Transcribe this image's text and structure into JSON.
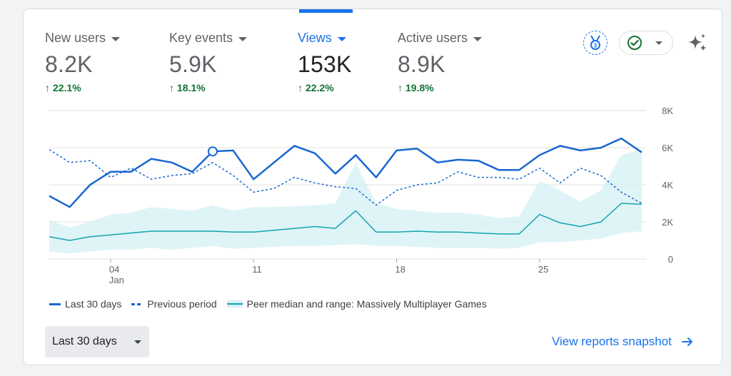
{
  "metrics": [
    {
      "label": "New users",
      "value": "8.2K",
      "change": "22.1%",
      "active": false
    },
    {
      "label": "Key events",
      "value": "5.9K",
      "change": "18.1%",
      "active": false
    },
    {
      "label": "Views",
      "value": "153K",
      "change": "22.2%",
      "active": true
    },
    {
      "label": "Active users",
      "value": "8.9K",
      "change": "19.8%",
      "active": false
    }
  ],
  "icons": {
    "badge": "ribbon-badge-icon",
    "status": "check-circle-icon",
    "insights": "sparkle-icon",
    "caret": "caret-down-icon",
    "arrow_up": "arrow-up-icon",
    "arrow_right": "arrow-right-icon"
  },
  "colors": {
    "accent": "#1a73e8",
    "positive": "#137333",
    "series_current": "#1967d2",
    "series_peer": "#12a4af",
    "peer_range": "#d4f0f4"
  },
  "chart_data": {
    "type": "line",
    "x_tick_labels": [
      {
        "index": 3,
        "label": "04",
        "sublabel": "Jan"
      },
      {
        "index": 10,
        "label": "11"
      },
      {
        "index": 17,
        "label": "18"
      },
      {
        "index": 24,
        "label": "25"
      }
    ],
    "y_ticks": [
      {
        "value": 0,
        "label": "0"
      },
      {
        "value": 2000,
        "label": "2K"
      },
      {
        "value": 4000,
        "label": "4K"
      },
      {
        "value": 6000,
        "label": "6K"
      },
      {
        "value": 8000,
        "label": "8K"
      }
    ],
    "ylim": [
      0,
      8000
    ],
    "grid": true,
    "legend_position": "bottom-left",
    "series": [
      {
        "name": "Last 30 days",
        "style": "solid",
        "values": [
          3400,
          2800,
          4000,
          4700,
          4700,
          5400,
          5200,
          4700,
          5800,
          5850,
          4300,
          5200,
          6100,
          5700,
          4600,
          5600,
          4400,
          5850,
          5950,
          5200,
          5350,
          5300,
          4800,
          4800,
          5600,
          6100,
          5850,
          6000,
          6500,
          5750
        ]
      },
      {
        "name": "Previous period",
        "style": "dashed",
        "values": [
          5900,
          5200,
          5300,
          4400,
          4900,
          4300,
          4500,
          4600,
          5200,
          4500,
          3600,
          3800,
          4400,
          4100,
          3900,
          3800,
          2900,
          3700,
          4000,
          4100,
          4700,
          4400,
          4400,
          4300,
          4900,
          4100,
          4900,
          4500,
          3600,
          3000
        ]
      },
      {
        "name": "Peer median and range: Massively Multiplayer Games",
        "style": "band",
        "median": [
          1200,
          1000,
          1200,
          1300,
          1400,
          1500,
          1500,
          1500,
          1500,
          1450,
          1450,
          1550,
          1650,
          1750,
          1650,
          2600,
          1450,
          1450,
          1500,
          1450,
          1450,
          1400,
          1350,
          1350,
          2400,
          1950,
          1750,
          2000,
          3000,
          2950
        ],
        "low": [
          400,
          300,
          400,
          500,
          500,
          600,
          500,
          600,
          700,
          550,
          600,
          650,
          700,
          700,
          750,
          800,
          700,
          700,
          650,
          600,
          600,
          600,
          550,
          600,
          900,
          900,
          1000,
          1100,
          1400,
          1500
        ],
        "high": [
          2100,
          1700,
          2000,
          2400,
          2500,
          2800,
          2700,
          2600,
          2900,
          2600,
          2800,
          2800,
          2850,
          2900,
          3000,
          5200,
          3000,
          2700,
          2600,
          2500,
          2500,
          2400,
          2200,
          2300,
          4200,
          3700,
          3100,
          3700,
          5600,
          5900
        ]
      }
    ],
    "highlight": {
      "series_index": 0,
      "point_index": 8
    }
  },
  "legend": {
    "current": "Last 30 days",
    "previous": "Previous period",
    "peer": "Peer median and range: Massively Multiplayer Games"
  },
  "date_range": {
    "label": "Last 30 days"
  },
  "snapshot_link": {
    "label": "View reports snapshot"
  }
}
